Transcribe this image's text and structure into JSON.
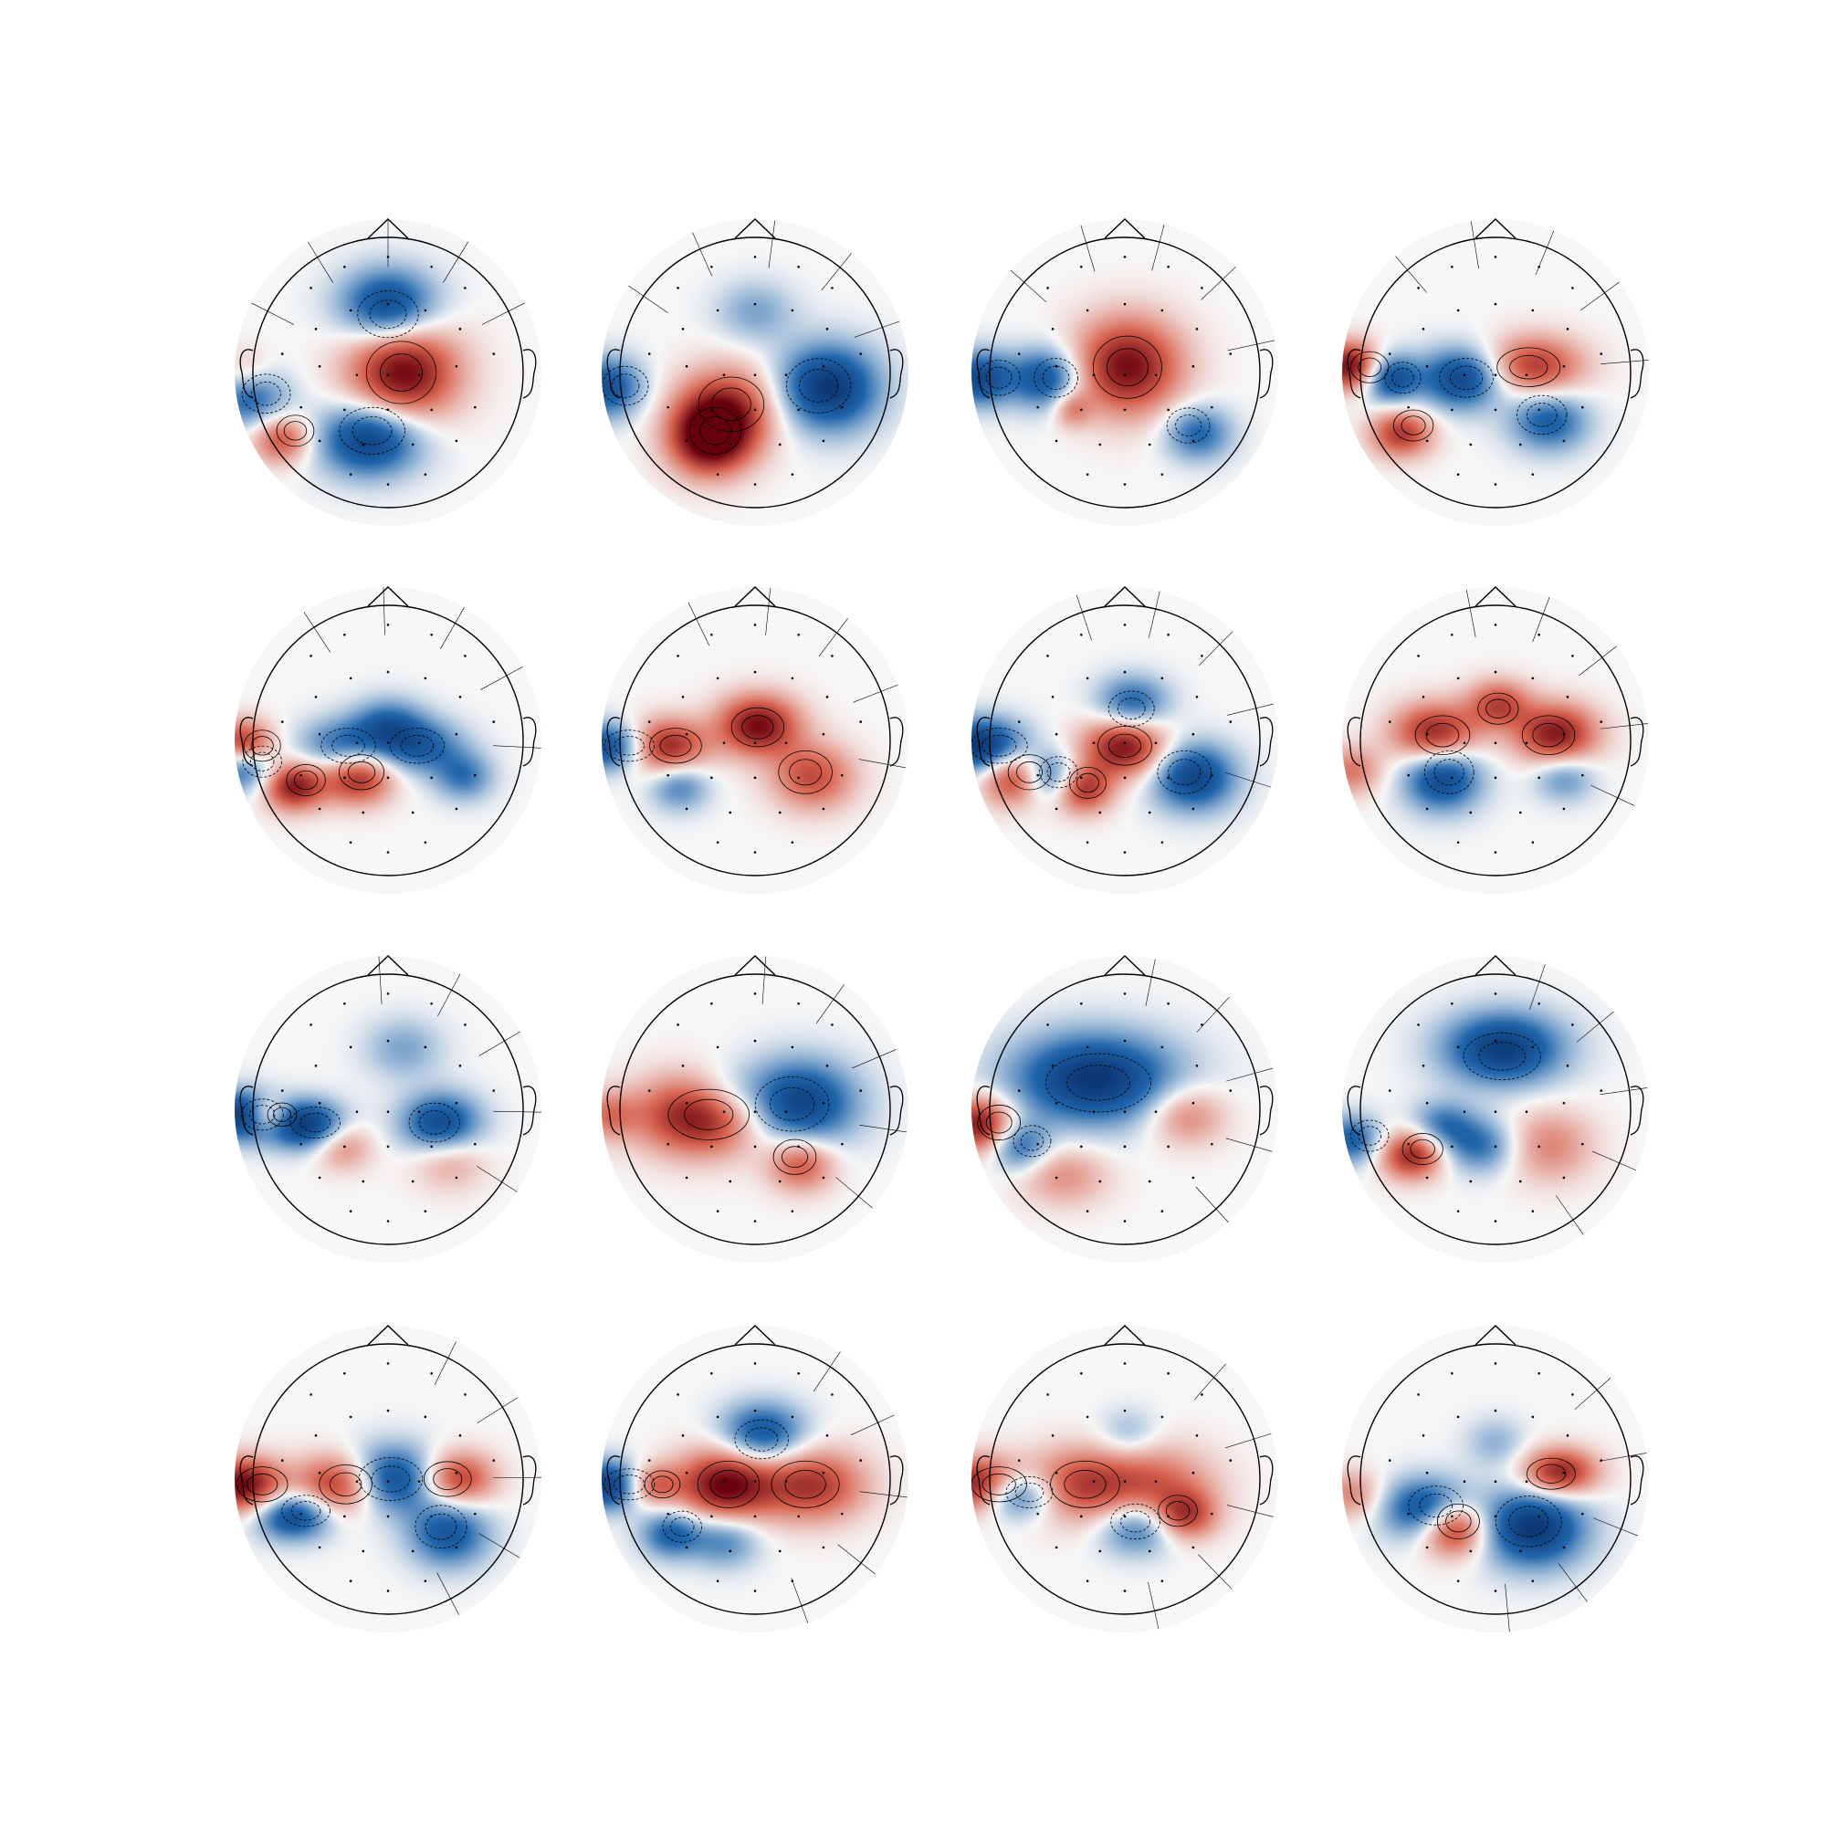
{
  "chart_data": {
    "type": "heatmap",
    "subtype": "scalp-topography-grid",
    "title": "",
    "xlabel": "",
    "ylabel": "",
    "grid": false,
    "legend": "none",
    "rows": 4,
    "cols": 4,
    "colormap": {
      "negative": "#08306b",
      "mid": "#f7f7f7",
      "positive": "#67000d"
    },
    "outline_color": "#000000",
    "maps": [
      {
        "index": 1,
        "blobs": [
          [
            0,
            0.28,
            0.3,
            -0.8,
            0.12
          ],
          [
            0.1,
            0.5,
            0.12,
            0.95,
            0.16
          ],
          [
            -0.12,
            0.72,
            0.4,
            -0.85,
            0.12
          ],
          [
            -0.7,
            0.72,
            0.2,
            0.6,
            0.08
          ],
          [
            -0.92,
            0.58,
            0.24,
            -0.6,
            0.1
          ],
          [
            -0.95,
            0.5,
            0.18,
            0.3,
            0.08
          ]
        ]
      },
      {
        "index": 2,
        "blobs": [
          [
            -0.18,
            0.62,
            0.2,
            0.7,
            0.14
          ],
          [
            -0.3,
            0.72,
            0.1,
            0.95,
            0.12
          ],
          [
            0.48,
            0.55,
            0.18,
            -0.9,
            0.14
          ],
          [
            -0.98,
            0.55,
            0.18,
            -0.7,
            0.1
          ],
          [
            0.0,
            0.3,
            0.28,
            -0.3,
            0.1
          ]
        ]
      },
      {
        "index": 3,
        "blobs": [
          [
            0.02,
            0.48,
            0.1,
            0.9,
            0.16
          ],
          [
            -0.52,
            0.52,
            0.12,
            -0.7,
            0.1
          ],
          [
            0.48,
            0.7,
            0.22,
            -0.55,
            0.09
          ],
          [
            -0.95,
            0.52,
            0.2,
            -0.75,
            0.09
          ],
          [
            -0.35,
            0.62,
            0.02,
            0.4,
            0.06
          ]
        ]
      },
      {
        "index": 4,
        "blobs": [
          [
            -0.95,
            0.48,
            0.22,
            0.95,
            0.08
          ],
          [
            -0.7,
            0.52,
            0.15,
            -0.75,
            0.08
          ],
          [
            -0.62,
            0.7,
            0.28,
            0.7,
            0.08
          ],
          [
            -0.22,
            0.52,
            0.38,
            -0.8,
            0.1
          ],
          [
            0.25,
            0.48,
            0.62,
            0.7,
            0.1
          ],
          [
            0.35,
            0.66,
            0.28,
            -0.6,
            0.1
          ]
        ]
      },
      {
        "index": 5,
        "blobs": [
          [
            -0.95,
            0.52,
            0.18,
            0.95,
            0.08
          ],
          [
            -0.95,
            0.58,
            0.25,
            -0.8,
            0.08
          ],
          [
            -0.62,
            0.65,
            0.25,
            0.85,
            0.08
          ],
          [
            -0.2,
            0.62,
            0.28,
            0.8,
            0.09
          ],
          [
            -0.3,
            0.52,
            0.55,
            -0.55,
            0.09
          ],
          [
            0.0,
            0.45,
            0.3,
            -0.5,
            0.09
          ],
          [
            0.22,
            0.52,
            0.55,
            -0.55,
            0.09
          ],
          [
            0.5,
            0.62,
            0.2,
            -0.45,
            0.08
          ]
        ]
      },
      {
        "index": 6,
        "blobs": [
          [
            -0.95,
            0.52,
            0.6,
            -0.8,
            0.08
          ],
          [
            -0.6,
            0.52,
            0.48,
            0.85,
            0.09
          ],
          [
            0.02,
            0.45,
            0.35,
            0.9,
            0.1
          ],
          [
            -0.5,
            0.65,
            0.2,
            -0.45,
            0.08
          ],
          [
            0.38,
            0.62,
            0.25,
            0.6,
            0.11
          ]
        ]
      },
      {
        "index": 7,
        "blobs": [
          [
            -0.95,
            0.52,
            0.62,
            -0.95,
            0.09
          ],
          [
            -0.72,
            0.62,
            0.22,
            0.8,
            0.09
          ],
          [
            -0.5,
            0.62,
            0.22,
            -0.7,
            0.08
          ],
          [
            -0.28,
            0.66,
            0.18,
            0.75,
            0.08
          ],
          [
            0.0,
            0.52,
            0.38,
            0.9,
            0.1
          ],
          [
            0.05,
            0.38,
            0.3,
            -0.6,
            0.09
          ],
          [
            0.45,
            0.62,
            0.25,
            -0.8,
            0.11
          ]
        ]
      },
      {
        "index": 8,
        "blobs": [
          [
            -0.95,
            0.6,
            0.2,
            0.45,
            0.08
          ],
          [
            -0.4,
            0.48,
            0.4,
            0.85,
            0.1
          ],
          [
            0.02,
            0.38,
            0.3,
            0.6,
            0.08
          ],
          [
            0.4,
            0.48,
            0.35,
            0.85,
            0.1
          ],
          [
            -0.35,
            0.62,
            0.15,
            -0.8,
            0.11
          ],
          [
            0.45,
            0.62,
            0.25,
            -0.4,
            0.08
          ]
        ]
      },
      {
        "index": 9,
        "blobs": [
          [
            -0.95,
            0.52,
            0.35,
            -0.95,
            0.08
          ],
          [
            -0.8,
            0.52,
            0.25,
            0.7,
            0.06
          ],
          [
            -0.55,
            0.55,
            0.6,
            -0.9,
            0.08
          ],
          [
            -0.3,
            0.62,
            0.2,
            0.4,
            0.08
          ],
          [
            0.1,
            0.3,
            0.28,
            -0.3,
            0.1
          ],
          [
            0.35,
            0.55,
            0.3,
            -0.8,
            0.1
          ],
          [
            0.4,
            0.66,
            0.2,
            0.35,
            0.1
          ]
        ]
      },
      {
        "index": 10,
        "blobs": [
          [
            -0.35,
            0.52,
            0.6,
            0.95,
            0.13
          ],
          [
            0.28,
            0.48,
            0.35,
            -0.85,
            0.14
          ],
          [
            0.3,
            0.68,
            0.22,
            0.6,
            0.09
          ],
          [
            -0.98,
            0.52,
            0.2,
            0.4,
            0.08
          ],
          [
            -0.2,
            0.45,
            0.3,
            -0.3,
            0.1
          ]
        ]
      },
      {
        "index": 11,
        "blobs": [
          [
            -0.2,
            0.4,
            0.8,
            -0.9,
            0.15
          ],
          [
            -0.95,
            0.55,
            0.22,
            0.9,
            0.09
          ],
          [
            -0.7,
            0.62,
            0.2,
            -0.55,
            0.08
          ],
          [
            0.4,
            0.52,
            0.3,
            0.45,
            0.1
          ],
          [
            -0.4,
            0.72,
            0.45,
            0.35,
            0.1
          ]
        ]
      },
      {
        "index": 12,
        "blobs": [
          [
            0.05,
            0.3,
            0.65,
            -0.85,
            0.12
          ],
          [
            -0.55,
            0.65,
            0.3,
            0.8,
            0.08
          ],
          [
            -0.35,
            0.55,
            0.3,
            -0.45,
            0.08
          ],
          [
            -0.1,
            0.62,
            0.35,
            -0.5,
            0.09
          ],
          [
            0.35,
            0.62,
            0.22,
            0.4,
            0.12
          ],
          [
            -0.95,
            0.6,
            0.22,
            -0.6,
            0.08
          ]
        ]
      },
      {
        "index": 13,
        "blobs": [
          [
            -0.95,
            0.52,
            0.45,
            0.95,
            0.09
          ],
          [
            -0.62,
            0.62,
            0.55,
            -0.8,
            0.08
          ],
          [
            -0.32,
            0.52,
            0.35,
            0.85,
            0.1
          ],
          [
            0.02,
            0.5,
            0.48,
            -0.8,
            0.11
          ],
          [
            0.45,
            0.5,
            0.35,
            0.75,
            0.09
          ],
          [
            0.4,
            0.68,
            0.2,
            -0.65,
            0.11
          ]
        ]
      },
      {
        "index": 14,
        "blobs": [
          [
            -0.95,
            0.52,
            0.62,
            -0.9,
            0.08
          ],
          [
            -0.7,
            0.52,
            0.3,
            0.7,
            0.07
          ],
          [
            -0.2,
            0.52,
            0.32,
            0.95,
            0.12
          ],
          [
            0.05,
            0.35,
            0.38,
            -0.7,
            0.1
          ],
          [
            0.38,
            0.52,
            0.45,
            0.7,
            0.12
          ],
          [
            -0.55,
            0.68,
            0.25,
            -0.6,
            0.08
          ],
          [
            -0.2,
            0.7,
            0.25,
            -0.45,
            0.09
          ]
        ]
      },
      {
        "index": 15,
        "blobs": [
          [
            -0.95,
            0.52,
            0.58,
            0.95,
            0.09
          ],
          [
            -0.72,
            0.55,
            0.5,
            -0.8,
            0.08
          ],
          [
            -0.3,
            0.52,
            0.48,
            0.6,
            0.12
          ],
          [
            0.2,
            0.52,
            0.5,
            0.5,
            0.13
          ],
          [
            0.08,
            0.66,
            0.4,
            -0.55,
            0.09
          ],
          [
            0.4,
            0.62,
            0.25,
            0.6,
            0.08
          ],
          [
            0.02,
            0.35,
            0.2,
            -0.25,
            0.08
          ]
        ]
      },
      {
        "index": 16,
        "blobs": [
          [
            -0.45,
            0.6,
            0.4,
            -0.8,
            0.1
          ],
          [
            -0.28,
            0.66,
            0.2,
            0.95,
            0.09
          ],
          [
            0.25,
            0.66,
            0.3,
            -0.9,
            0.13
          ],
          [
            0.42,
            0.48,
            0.55,
            0.85,
            0.08
          ],
          [
            0.0,
            0.38,
            0.22,
            -0.25,
            0.08
          ],
          [
            -0.95,
            0.55,
            0.22,
            0.4,
            0.08
          ]
        ]
      }
    ]
  }
}
